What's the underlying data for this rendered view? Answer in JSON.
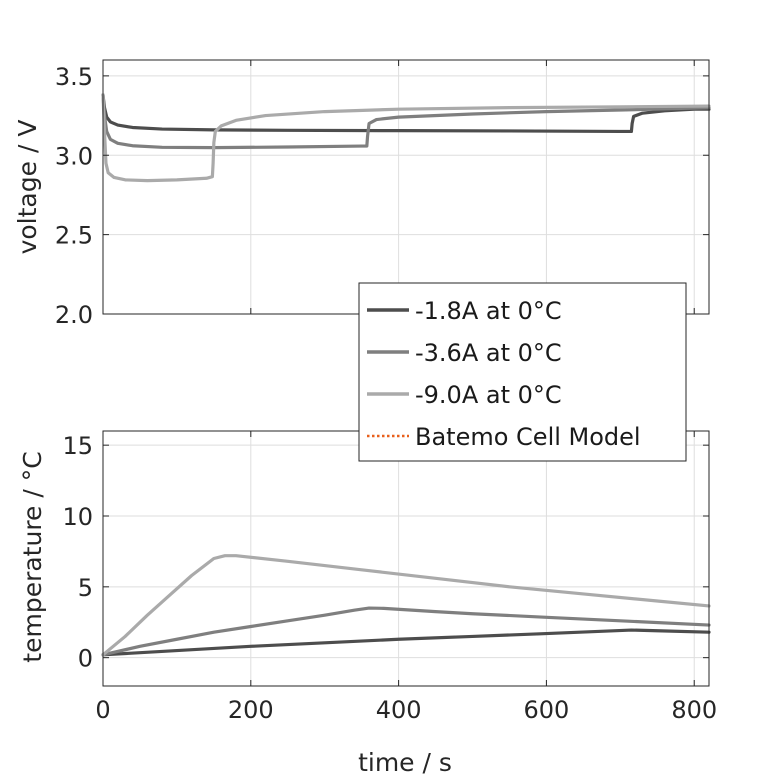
{
  "chart_data": [
    {
      "type": "line",
      "title": "",
      "xlabel": "",
      "ylabel": "voltage / V",
      "xlim": [
        0,
        820
      ],
      "ylim": [
        2.0,
        3.6
      ],
      "xticks": [
        0,
        200,
        400,
        600,
        800
      ],
      "xtick_labels": [],
      "yticks": [
        2.0,
        2.5,
        3.0,
        3.5
      ],
      "ytick_labels": [
        "2.0",
        "2.5",
        "3.0",
        "3.5"
      ],
      "grid": true,
      "legend": "none",
      "series": [
        {
          "name": "-1.8A at 0°C",
          "color": "#4d4d4d",
          "points": [
            [
              0,
              3.38
            ],
            [
              2,
              3.3
            ],
            [
              5,
              3.24
            ],
            [
              10,
              3.21
            ],
            [
              20,
              3.19
            ],
            [
              40,
              3.175
            ],
            [
              80,
              3.165
            ],
            [
              150,
              3.16
            ],
            [
              250,
              3.157
            ],
            [
              400,
              3.155
            ],
            [
              550,
              3.153
            ],
            [
              700,
              3.15
            ],
            [
              715,
              3.15
            ],
            [
              716,
              3.2
            ],
            [
              718,
              3.245
            ],
            [
              730,
              3.265
            ],
            [
              760,
              3.28
            ],
            [
              800,
              3.29
            ],
            [
              820,
              3.29
            ]
          ]
        },
        {
          "name": "-3.6A at 0°C",
          "color": "#7f7f7f",
          "points": [
            [
              0,
              3.38
            ],
            [
              2,
              3.25
            ],
            [
              5,
              3.15
            ],
            [
              10,
              3.1
            ],
            [
              20,
              3.075
            ],
            [
              40,
              3.06
            ],
            [
              80,
              3.05
            ],
            [
              150,
              3.048
            ],
            [
              250,
              3.052
            ],
            [
              350,
              3.058
            ],
            [
              357,
              3.058
            ],
            [
              358,
              3.12
            ],
            [
              360,
              3.2
            ],
            [
              370,
              3.225
            ],
            [
              400,
              3.24
            ],
            [
              500,
              3.26
            ],
            [
              600,
              3.275
            ],
            [
              700,
              3.285
            ],
            [
              820,
              3.3
            ]
          ]
        },
        {
          "name": "-9.0A at 0°C",
          "color": "#aaaaaa",
          "points": [
            [
              0,
              3.38
            ],
            [
              2,
              3.15
            ],
            [
              4,
              2.95
            ],
            [
              7,
              2.89
            ],
            [
              15,
              2.86
            ],
            [
              30,
              2.845
            ],
            [
              60,
              2.84
            ],
            [
              100,
              2.845
            ],
            [
              140,
              2.855
            ],
            [
              148,
              2.865
            ],
            [
              149,
              2.95
            ],
            [
              150,
              3.08
            ],
            [
              152,
              3.15
            ],
            [
              160,
              3.185
            ],
            [
              180,
              3.22
            ],
            [
              220,
              3.25
            ],
            [
              300,
              3.275
            ],
            [
              400,
              3.29
            ],
            [
              550,
              3.3
            ],
            [
              700,
              3.305
            ],
            [
              820,
              3.31
            ]
          ]
        }
      ]
    },
    {
      "type": "line",
      "title": "",
      "xlabel": "time / s",
      "ylabel": "temperature / °C",
      "xlim": [
        0,
        820
      ],
      "ylim": [
        -2,
        16
      ],
      "xticks": [
        0,
        200,
        400,
        600,
        800
      ],
      "xtick_labels": [
        "0",
        "200",
        "400",
        "600",
        "800"
      ],
      "yticks": [
        0,
        5,
        10,
        15
      ],
      "ytick_labels": [
        "0",
        "5",
        "10",
        "15"
      ],
      "grid": true,
      "legend": "none",
      "series": [
        {
          "name": "-1.8A at 0°C",
          "color": "#4d4d4d",
          "points": [
            [
              0,
              0.2
            ],
            [
              100,
              0.5
            ],
            [
              200,
              0.8
            ],
            [
              300,
              1.05
            ],
            [
              400,
              1.3
            ],
            [
              500,
              1.5
            ],
            [
              600,
              1.7
            ],
            [
              715,
              1.95
            ],
            [
              750,
              1.9
            ],
            [
              820,
              1.8
            ]
          ]
        },
        {
          "name": "-3.6A at 0°C",
          "color": "#7f7f7f",
          "points": [
            [
              0,
              0.2
            ],
            [
              50,
              0.8
            ],
            [
              100,
              1.3
            ],
            [
              150,
              1.8
            ],
            [
              200,
              2.2
            ],
            [
              250,
              2.6
            ],
            [
              300,
              3.0
            ],
            [
              340,
              3.35
            ],
            [
              360,
              3.5
            ],
            [
              380,
              3.48
            ],
            [
              450,
              3.25
            ],
            [
              500,
              3.1
            ],
            [
              600,
              2.85
            ],
            [
              700,
              2.6
            ],
            [
              820,
              2.3
            ]
          ]
        },
        {
          "name": "-9.0A at 0°C",
          "color": "#aaaaaa",
          "points": [
            [
              0,
              0.2
            ],
            [
              30,
              1.5
            ],
            [
              60,
              3.0
            ],
            [
              90,
              4.4
            ],
            [
              120,
              5.8
            ],
            [
              150,
              7.0
            ],
            [
              165,
              7.2
            ],
            [
              180,
              7.2
            ],
            [
              250,
              6.8
            ],
            [
              350,
              6.2
            ],
            [
              450,
              5.6
            ],
            [
              550,
              5.0
            ],
            [
              650,
              4.5
            ],
            [
              750,
              4.0
            ],
            [
              820,
              3.65
            ]
          ]
        }
      ]
    }
  ],
  "legend": {
    "entries": [
      {
        "label": "-1.8A at 0°C",
        "color": "#4d4d4d",
        "style": "solid"
      },
      {
        "label": "-3.6A at 0°C",
        "color": "#7f7f7f",
        "style": "solid"
      },
      {
        "label": "-9.0A at 0°C",
        "color": "#aaaaaa",
        "style": "solid"
      },
      {
        "label": "Batemo Cell Model",
        "color": "#e8601c",
        "style": "dotted"
      }
    ]
  }
}
